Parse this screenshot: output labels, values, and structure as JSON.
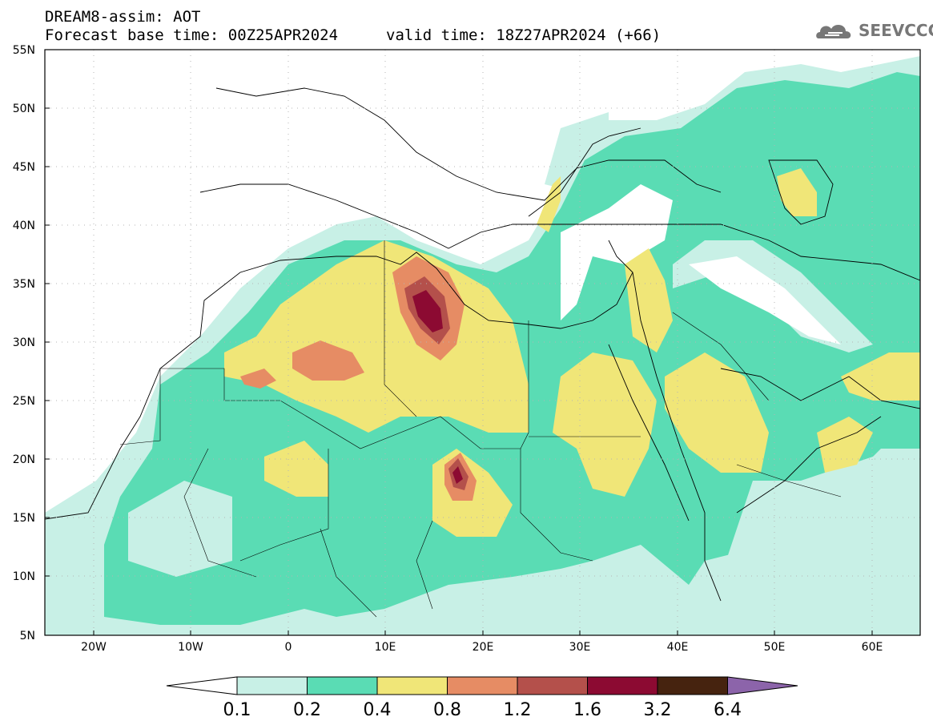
{
  "header": {
    "title": "DREAM8-assim: AOT",
    "base_time": "Forecast base time: 00Z25APR2024",
    "valid_time": "valid time: 18Z27APR2024 (+66)"
  },
  "logo": {
    "text": "SEEVCCC",
    "icon": "cloud-icon"
  },
  "axes": {
    "lat_labels": [
      "55N",
      "50N",
      "45N",
      "40N",
      "35N",
      "30N",
      "25N",
      "20N",
      "15N",
      "10N",
      "5N"
    ],
    "lon_labels": [
      "20W",
      "10W",
      "0",
      "10E",
      "20E",
      "30E",
      "40E",
      "50E",
      "60E"
    ],
    "lat_range": [
      5,
      55
    ],
    "lon_range": [
      -25,
      65
    ],
    "grid": true
  },
  "colorbar": {
    "levels": [
      "0.1",
      "0.2",
      "0.4",
      "0.8",
      "1.2",
      "1.6",
      "3.2",
      "6.4"
    ],
    "colors": [
      "#c8f0e6",
      "#5adcb4",
      "#f0e678",
      "#e68c64",
      "#b4504b",
      "#8c0a32",
      "#46230f",
      "#8c64aa"
    ],
    "under_color": "#ffffff"
  }
}
